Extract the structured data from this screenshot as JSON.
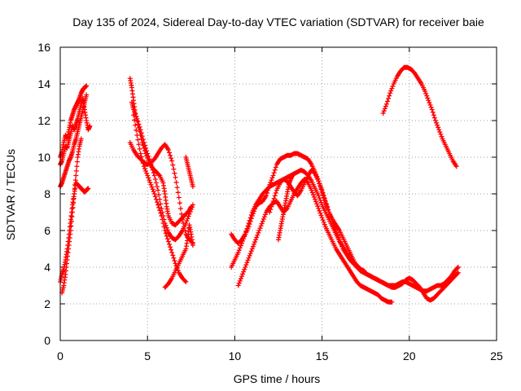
{
  "chart_data": {
    "type": "scatter",
    "title": "Day 135 of 2024, Sidereal Day-to-day VTEC variation (SDTVAR) for receiver baie",
    "xlabel": "GPS time / hours",
    "ylabel": "SDTVAR / TECUs",
    "xlim": [
      0,
      25
    ],
    "ylim": [
      0,
      16
    ],
    "xticks": [
      0,
      5,
      10,
      15,
      20,
      25
    ],
    "yticks": [
      0,
      2,
      4,
      6,
      8,
      10,
      12,
      14,
      16
    ],
    "grid": true,
    "marker": "+",
    "color": "#ff0000",
    "series": [
      {
        "name": "s1",
        "x": [
          0.0,
          0.1,
          0.2,
          0.3,
          0.4,
          0.5,
          0.6,
          0.7,
          0.8,
          0.9,
          1.0,
          1.1,
          1.2,
          1.3,
          1.4,
          1.5
        ],
        "y": [
          10.0,
          10.3,
          10.8,
          11.2,
          11.0,
          11.5,
          12.0,
          12.3,
          12.6,
          12.8,
          13.0,
          13.2,
          13.5,
          13.7,
          13.8,
          13.9
        ]
      },
      {
        "name": "s2",
        "x": [
          0.0,
          0.1,
          0.2,
          0.3,
          0.4,
          0.5,
          0.6,
          0.7,
          0.8,
          0.9,
          1.0,
          1.1,
          1.2,
          1.3,
          1.4,
          1.5,
          1.6,
          1.7
        ],
        "y": [
          9.6,
          9.8,
          10.2,
          10.6,
          10.5,
          10.9,
          11.3,
          11.7,
          11.5,
          11.8,
          12.1,
          12.5,
          12.9,
          13.2,
          12.6,
          12.0,
          11.5,
          11.7
        ]
      },
      {
        "name": "s3",
        "x": [
          0.0,
          0.1,
          0.2,
          0.3,
          0.4,
          0.5,
          0.6,
          0.7,
          0.8,
          0.9,
          1.0,
          1.1,
          1.2,
          1.3,
          1.4,
          1.5
        ],
        "y": [
          8.4,
          8.6,
          8.9,
          9.2,
          9.5,
          9.8,
          10.0,
          10.3,
          10.7,
          11.0,
          11.4,
          11.8,
          12.2,
          12.6,
          13.0,
          13.4
        ]
      },
      {
        "name": "s4",
        "x": [
          0.0,
          0.1,
          0.2,
          0.3,
          0.4,
          0.5,
          0.6,
          0.7,
          0.8,
          0.9,
          1.0,
          1.1,
          1.2,
          1.3,
          1.4,
          1.5,
          1.6
        ],
        "y": [
          3.2,
          3.6,
          3.9,
          4.4,
          5.0,
          5.8,
          6.6,
          7.4,
          8.0,
          8.6,
          8.5,
          8.4,
          8.3,
          8.2,
          8.1,
          8.2,
          8.3
        ]
      },
      {
        "name": "s5",
        "x": [
          0.1,
          0.2,
          0.3,
          0.4,
          0.5,
          0.6,
          0.7,
          0.8,
          0.9,
          1.0,
          1.1,
          1.2
        ],
        "y": [
          2.6,
          3.0,
          3.6,
          4.4,
          5.2,
          6.0,
          7.0,
          8.0,
          9.0,
          10.0,
          10.6,
          11.0
        ]
      },
      {
        "name": "s6",
        "x": [
          4.0,
          4.1,
          4.2,
          4.3,
          4.5,
          4.7,
          4.9,
          5.1,
          5.3,
          5.5,
          5.7,
          5.9,
          6.0,
          6.1,
          6.2,
          6.4,
          6.6,
          6.8,
          7.0,
          7.2,
          7.4,
          7.5
        ],
        "y": [
          14.3,
          13.8,
          13.1,
          12.4,
          11.6,
          10.8,
          10.2,
          9.7,
          9.4,
          9.2,
          9.0,
          8.6,
          8.0,
          7.3,
          6.8,
          6.4,
          6.3,
          6.5,
          6.7,
          6.9,
          7.1,
          7.3
        ]
      },
      {
        "name": "s7",
        "x": [
          4.1,
          4.2,
          4.4,
          4.6,
          4.8,
          5.0,
          5.2,
          5.4,
          5.6,
          5.8,
          6.0,
          6.2,
          6.4,
          6.6,
          6.8,
          7.0,
          7.2,
          7.4,
          7.6
        ],
        "y": [
          13.0,
          12.6,
          12.1,
          11.5,
          10.8,
          10.2,
          9.6,
          9.0,
          8.2,
          7.2,
          6.4,
          5.9,
          5.6,
          5.5,
          5.7,
          6.0,
          6.4,
          6.9,
          7.4
        ]
      },
      {
        "name": "s8",
        "x": [
          4.0,
          4.2,
          4.4,
          4.6,
          4.8,
          5.0,
          5.2,
          5.4,
          5.6,
          5.8,
          6.0,
          6.2,
          6.4,
          6.6,
          6.8,
          7.0,
          7.2,
          7.4,
          7.6
        ],
        "y": [
          10.8,
          10.4,
          10.1,
          9.9,
          9.7,
          9.6,
          9.7,
          9.9,
          10.2,
          10.5,
          10.7,
          10.4,
          9.8,
          8.9,
          7.8,
          6.6,
          5.8,
          5.5,
          5.3
        ]
      },
      {
        "name": "s9",
        "x": [
          4.2,
          4.4,
          4.6,
          4.8,
          5.0,
          5.2,
          5.4,
          5.6,
          5.8,
          6.0,
          6.2,
          6.4,
          6.6,
          6.8,
          7.0,
          7.2
        ],
        "y": [
          12.3,
          11.2,
          10.2,
          9.5,
          9.0,
          8.5,
          8.0,
          7.4,
          6.8,
          6.0,
          5.4,
          4.8,
          4.2,
          3.7,
          3.4,
          3.2
        ]
      },
      {
        "name": "s10",
        "x": [
          6.0,
          6.2,
          6.4,
          6.6,
          6.8,
          7.0,
          7.2,
          7.3,
          7.4,
          7.5,
          7.6
        ],
        "y": [
          2.9,
          3.1,
          3.4,
          3.8,
          4.2,
          4.6,
          5.0,
          5.6,
          6.3,
          5.8,
          5.2
        ]
      },
      {
        "name": "s11",
        "x": [
          7.2,
          7.3,
          7.4,
          7.5,
          7.6
        ],
        "y": [
          10.0,
          9.6,
          9.2,
          8.8,
          8.4
        ]
      },
      {
        "name": "s12",
        "x": [
          9.8,
          10.0,
          10.2,
          10.4,
          10.6,
          10.8,
          11.0,
          11.2,
          11.4,
          11.6,
          11.8,
          12.0,
          12.2,
          12.4,
          12.6,
          12.8,
          13.0,
          13.2,
          13.4,
          13.6,
          13.8,
          14.0,
          14.2,
          14.4,
          14.6,
          14.8,
          15.0,
          15.2,
          15.4,
          15.6,
          15.8,
          16.0,
          16.2,
          16.4,
          16.6,
          16.8,
          17.0,
          17.2,
          17.4,
          17.6,
          17.8,
          18.0,
          18.2,
          18.4,
          18.6,
          18.8,
          19.0,
          19.2,
          19.4,
          19.6,
          19.8,
          20.0,
          20.2,
          20.4,
          20.6,
          20.8,
          21.0,
          21.2,
          21.4,
          21.6,
          21.8,
          22.0,
          22.2,
          22.4,
          22.6,
          22.8
        ],
        "y": [
          5.8,
          5.5,
          5.3,
          5.5,
          5.8,
          6.2,
          6.8,
          7.3,
          7.5,
          7.6,
          7.9,
          8.5,
          9.0,
          9.6,
          9.9,
          10.0,
          10.1,
          10.1,
          10.2,
          10.2,
          10.1,
          10.0,
          9.9,
          9.6,
          9.2,
          8.7,
          8.1,
          7.5,
          7.0,
          6.5,
          6.0,
          5.5,
          5.0,
          4.7,
          4.4,
          4.2,
          4.0,
          3.8,
          3.7,
          3.6,
          3.5,
          3.4,
          3.3,
          3.2,
          3.1,
          3.0,
          3.0,
          3.0,
          3.1,
          3.2,
          3.2,
          3.1,
          3.0,
          2.9,
          2.8,
          2.7,
          2.7,
          2.8,
          2.9,
          3.0,
          3.0,
          3.1,
          3.3,
          3.5,
          3.8,
          4.0
        ]
      },
      {
        "name": "s13",
        "x": [
          9.8,
          10.0,
          10.2,
          10.4,
          10.6,
          10.8,
          11.0,
          11.2,
          11.4,
          11.6,
          11.8,
          12.0,
          12.2,
          12.4,
          12.6,
          12.8,
          13.0,
          13.2,
          13.4,
          13.6,
          13.8,
          14.0,
          14.2,
          14.4,
          14.6,
          14.8,
          15.0,
          15.2,
          15.4,
          15.6,
          15.8,
          16.0,
          16.2,
          16.4,
          16.6,
          16.8,
          17.0,
          17.2,
          17.4,
          17.6,
          17.8,
          18.0,
          18.2,
          18.4,
          18.6,
          18.8,
          19.0,
          19.2,
          19.4,
          19.6,
          19.8,
          20.0,
          20.2,
          20.4,
          20.6,
          20.8,
          21.0,
          21.2,
          21.4,
          21.6,
          21.8,
          22.0,
          22.2,
          22.4,
          22.6,
          22.8
        ],
        "y": [
          4.0,
          4.4,
          4.8,
          5.3,
          5.8,
          6.4,
          7.0,
          7.4,
          7.7,
          8.0,
          8.2,
          8.4,
          8.5,
          8.6,
          8.7,
          8.8,
          8.9,
          9.0,
          9.1,
          9.2,
          9.3,
          9.2,
          9.0,
          8.7,
          8.3,
          7.9,
          7.4,
          7.0,
          6.6,
          6.2,
          5.8,
          5.4,
          5.1,
          4.8,
          4.5,
          4.3,
          4.1,
          3.9,
          3.8,
          3.6,
          3.5,
          3.4,
          3.3,
          3.2,
          3.1,
          3.0,
          2.9,
          2.9,
          3.0,
          3.1,
          3.3,
          3.4,
          3.3,
          3.1,
          2.9,
          2.6,
          2.3,
          2.2,
          2.3,
          2.5,
          2.7,
          2.9,
          3.1,
          3.3,
          3.5,
          3.7
        ]
      },
      {
        "name": "s14",
        "x": [
          10.2,
          10.4,
          10.6,
          10.8,
          11.0,
          11.2,
          11.4,
          11.6,
          11.8,
          12.0,
          12.2,
          12.4,
          12.6,
          12.8,
          13.0,
          13.2,
          13.4,
          13.6,
          13.8,
          14.0,
          14.2,
          14.4,
          14.6,
          14.8,
          15.0,
          15.2,
          15.4,
          15.6,
          15.8,
          16.0,
          16.2,
          16.4,
          16.6,
          16.8,
          17.0,
          17.2,
          17.4,
          17.6,
          17.8,
          18.0,
          18.2,
          18.4,
          18.6,
          18.8,
          19.0
        ],
        "y": [
          3.0,
          3.5,
          4.0,
          4.5,
          5.0,
          5.5,
          6.0,
          6.5,
          7.0,
          7.3,
          7.5,
          7.6,
          7.3,
          7.0,
          7.2,
          7.6,
          8.0,
          8.3,
          8.6,
          8.8,
          8.6,
          8.2,
          7.7,
          7.2,
          6.7,
          6.2,
          5.8,
          5.4,
          5.0,
          4.7,
          4.4,
          4.1,
          3.8,
          3.5,
          3.2,
          3.0,
          2.9,
          2.8,
          2.7,
          2.6,
          2.5,
          2.3,
          2.2,
          2.1,
          2.1
        ]
      },
      {
        "name": "s15",
        "x": [
          12.0,
          12.2,
          12.4,
          12.6,
          12.8,
          13.0,
          13.2,
          13.4,
          13.6,
          13.8,
          14.0,
          14.2,
          14.4,
          14.6,
          14.8,
          15.0,
          15.2,
          15.4,
          15.6,
          15.8,
          16.0,
          16.2,
          16.4,
          16.6,
          16.8,
          17.0
        ],
        "y": [
          7.0,
          7.6,
          8.2,
          8.6,
          8.8,
          8.7,
          8.4,
          8.1,
          7.9,
          8.2,
          8.6,
          9.0,
          9.3,
          9.1,
          8.7,
          8.2,
          7.6,
          7.0,
          6.6,
          6.3,
          6.0,
          5.6,
          5.2,
          4.8,
          4.4,
          4.0
        ]
      },
      {
        "name": "s16",
        "x": [
          12.5,
          12.6,
          12.7,
          12.8,
          12.9,
          13.0,
          13.1,
          13.2,
          13.3,
          13.4
        ],
        "y": [
          5.5,
          6.0,
          6.5,
          7.0,
          7.5,
          8.0,
          8.5,
          8.8,
          9.0,
          9.1
        ]
      },
      {
        "name": "s17",
        "x": [
          18.5,
          18.7,
          18.9,
          19.1,
          19.3,
          19.5,
          19.7,
          19.9,
          20.1,
          20.3,
          20.5,
          20.7,
          20.9,
          21.1,
          21.3,
          21.5,
          21.7,
          21.9,
          22.1,
          22.3,
          22.5,
          22.7
        ],
        "y": [
          12.4,
          12.9,
          13.5,
          14.0,
          14.4,
          14.7,
          14.9,
          14.9,
          14.8,
          14.6,
          14.3,
          14.0,
          13.6,
          13.1,
          12.6,
          12.0,
          11.5,
          11.0,
          10.6,
          10.2,
          9.8,
          9.5
        ]
      }
    ]
  }
}
